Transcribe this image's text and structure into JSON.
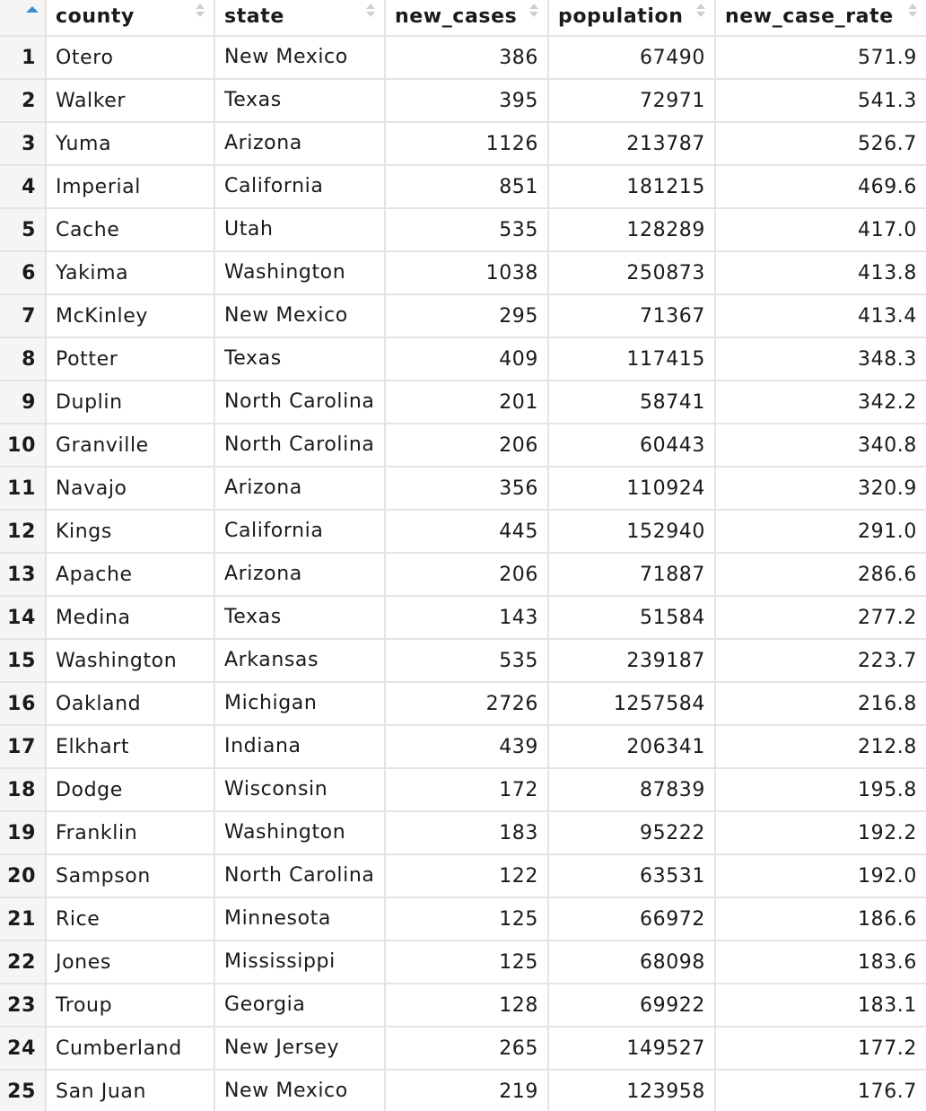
{
  "columns": {
    "county": "county",
    "state": "state",
    "new_cases": "new_cases",
    "population": "population",
    "new_case_rate": "new_case_rate"
  },
  "rows": [
    {
      "idx": "1",
      "county": "Otero",
      "state": "New Mexico",
      "new_cases": "386",
      "population": "67490",
      "new_case_rate": "571.9"
    },
    {
      "idx": "2",
      "county": "Walker",
      "state": "Texas",
      "new_cases": "395",
      "population": "72971",
      "new_case_rate": "541.3"
    },
    {
      "idx": "3",
      "county": "Yuma",
      "state": "Arizona",
      "new_cases": "1126",
      "population": "213787",
      "new_case_rate": "526.7"
    },
    {
      "idx": "4",
      "county": "Imperial",
      "state": "California",
      "new_cases": "851",
      "population": "181215",
      "new_case_rate": "469.6"
    },
    {
      "idx": "5",
      "county": "Cache",
      "state": "Utah",
      "new_cases": "535",
      "population": "128289",
      "new_case_rate": "417.0"
    },
    {
      "idx": "6",
      "county": "Yakima",
      "state": "Washington",
      "new_cases": "1038",
      "population": "250873",
      "new_case_rate": "413.8"
    },
    {
      "idx": "7",
      "county": "McKinley",
      "state": "New Mexico",
      "new_cases": "295",
      "population": "71367",
      "new_case_rate": "413.4"
    },
    {
      "idx": "8",
      "county": "Potter",
      "state": "Texas",
      "new_cases": "409",
      "population": "117415",
      "new_case_rate": "348.3"
    },
    {
      "idx": "9",
      "county": "Duplin",
      "state": "North Carolina",
      "new_cases": "201",
      "population": "58741",
      "new_case_rate": "342.2"
    },
    {
      "idx": "10",
      "county": "Granville",
      "state": "North Carolina",
      "new_cases": "206",
      "population": "60443",
      "new_case_rate": "340.8"
    },
    {
      "idx": "11",
      "county": "Navajo",
      "state": "Arizona",
      "new_cases": "356",
      "population": "110924",
      "new_case_rate": "320.9"
    },
    {
      "idx": "12",
      "county": "Kings",
      "state": "California",
      "new_cases": "445",
      "population": "152940",
      "new_case_rate": "291.0"
    },
    {
      "idx": "13",
      "county": "Apache",
      "state": "Arizona",
      "new_cases": "206",
      "population": "71887",
      "new_case_rate": "286.6"
    },
    {
      "idx": "14",
      "county": "Medina",
      "state": "Texas",
      "new_cases": "143",
      "population": "51584",
      "new_case_rate": "277.2"
    },
    {
      "idx": "15",
      "county": "Washington",
      "state": "Arkansas",
      "new_cases": "535",
      "population": "239187",
      "new_case_rate": "223.7"
    },
    {
      "idx": "16",
      "county": "Oakland",
      "state": "Michigan",
      "new_cases": "2726",
      "population": "1257584",
      "new_case_rate": "216.8"
    },
    {
      "idx": "17",
      "county": "Elkhart",
      "state": "Indiana",
      "new_cases": "439",
      "population": "206341",
      "new_case_rate": "212.8"
    },
    {
      "idx": "18",
      "county": "Dodge",
      "state": "Wisconsin",
      "new_cases": "172",
      "population": "87839",
      "new_case_rate": "195.8"
    },
    {
      "idx": "19",
      "county": "Franklin",
      "state": "Washington",
      "new_cases": "183",
      "population": "95222",
      "new_case_rate": "192.2"
    },
    {
      "idx": "20",
      "county": "Sampson",
      "state": "North Carolina",
      "new_cases": "122",
      "population": "63531",
      "new_case_rate": "192.0"
    },
    {
      "idx": "21",
      "county": "Rice",
      "state": "Minnesota",
      "new_cases": "125",
      "population": "66972",
      "new_case_rate": "186.6"
    },
    {
      "idx": "22",
      "county": "Jones",
      "state": "Mississippi",
      "new_cases": "125",
      "population": "68098",
      "new_case_rate": "183.6"
    },
    {
      "idx": "23",
      "county": "Troup",
      "state": "Georgia",
      "new_cases": "128",
      "population": "69922",
      "new_case_rate": "183.1"
    },
    {
      "idx": "24",
      "county": "Cumberland",
      "state": "New Jersey",
      "new_cases": "265",
      "population": "149527",
      "new_case_rate": "177.2"
    },
    {
      "idx": "25",
      "county": "San Juan",
      "state": "New Mexico",
      "new_cases": "219",
      "population": "123958",
      "new_case_rate": "176.7"
    }
  ],
  "colors": {
    "grid_line": "#e4e4e4",
    "index_bg": "#f5f5f5",
    "sort_active": "#3a8fd6",
    "sort_inactive": "#cfcfcf"
  },
  "icons": {
    "active_sort": "sort-ascending-icon",
    "column_sort": "sort-icon"
  }
}
